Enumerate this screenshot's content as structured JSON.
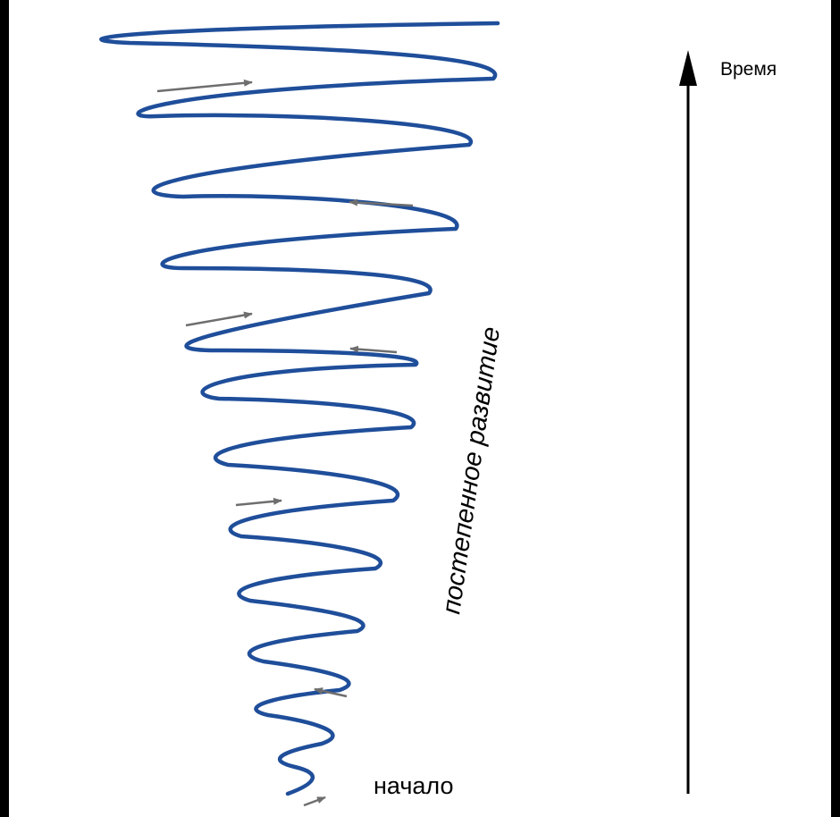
{
  "diagram": {
    "time_label": "Время",
    "vertical_label": "постепенное развитие",
    "start_label": "начало"
  },
  "colors": {
    "page_frame": "#000000",
    "background": "#ffffff",
    "spiral": "#1f4e9a",
    "direction_arrows": "#6e6e6e",
    "time_axis": "#000000"
  }
}
